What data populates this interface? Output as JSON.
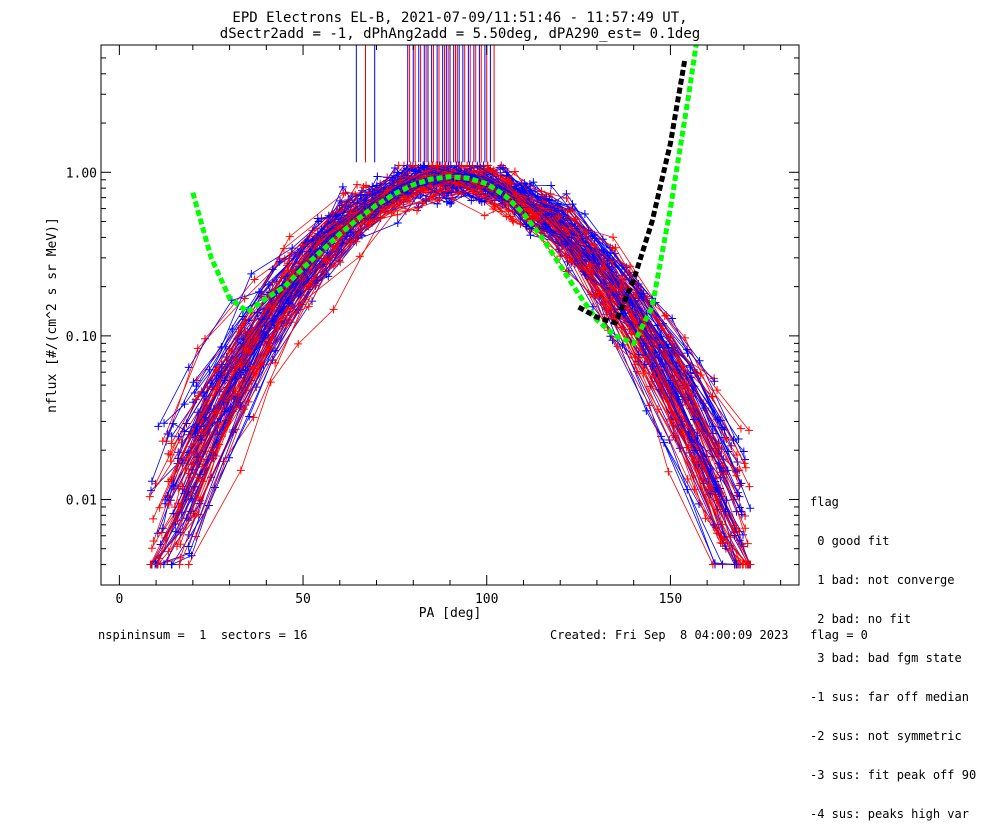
{
  "title": {
    "line1": "EPD Electrons EL-B, 2021-07-09/11:51:46 - 11:57:49 UT,",
    "line2": "dSectr2add = -1, dPhAng2add = 5.50deg, dPA290_est=   0.1deg"
  },
  "chart_data": {
    "type": "line",
    "xlabel": "PA [deg]",
    "ylabel": "nflux [#/(cm^2 s sr MeV)]",
    "xlim": [
      -5,
      185
    ],
    "ylim": [
      0.003,
      6.0
    ],
    "yscale": "log",
    "x_ticks": [
      0,
      50,
      100,
      150
    ],
    "x_tick_labels": [
      "0",
      "50",
      "100",
      "150"
    ],
    "y_ticks": [
      0.01,
      0.1,
      1.0
    ],
    "y_tick_labels": [
      "0.01",
      "0.10",
      "1.00"
    ],
    "colors": {
      "blue": "#0000ff",
      "red": "#ff0000",
      "green": "#00ff00",
      "black": "#000000"
    },
    "series": [
      {
        "color": "green",
        "style": "dashed-thick",
        "x": [
          20,
          25,
          30,
          35,
          40,
          45,
          50,
          55,
          60,
          65,
          70,
          75,
          80,
          85,
          90,
          95,
          100,
          105,
          110,
          115,
          120,
          125,
          130,
          135,
          140,
          145,
          150,
          155,
          157
        ],
        "y": [
          0.75,
          0.3,
          0.17,
          0.14,
          0.17,
          0.2,
          0.26,
          0.33,
          0.42,
          0.52,
          0.63,
          0.74,
          0.84,
          0.91,
          0.94,
          0.92,
          0.85,
          0.72,
          0.56,
          0.4,
          0.27,
          0.18,
          0.125,
          0.1,
          0.09,
          0.15,
          0.6,
          3.0,
          6.0
        ]
      },
      {
        "color": "black",
        "style": "dashed-thick",
        "x": [
          125,
          130,
          135,
          140,
          145,
          150,
          154
        ],
        "y": [
          0.15,
          0.13,
          0.12,
          0.22,
          0.5,
          1.5,
          5.0
        ]
      }
    ],
    "vertical_markers": {
      "blue_x": [
        64.5,
        69.5,
        78.5,
        80,
        81.5,
        83,
        84,
        85,
        86.5,
        88,
        89,
        90,
        91,
        92.5,
        93.5,
        95,
        96.5,
        98,
        99.5,
        101
      ],
      "red_x": [
        67,
        79,
        80.5,
        82,
        83.5,
        85.5,
        87,
        88.5,
        89.5,
        91.5,
        92,
        94,
        95.5,
        97,
        98.5,
        100,
        102
      ],
      "y_range": [
        1.15,
        6.0
      ]
    },
    "scatter_lines": "approximate spectra traced from the figure"
  },
  "legend": {
    "header": "flag",
    "items": [
      " 0 good fit",
      " 1 bad: not converge",
      " 2 bad: no fit",
      " 3 bad: bad fgm state",
      "-1 sus: far off median",
      "-2 sus: not symmetric",
      "-3 sus: fit peak off 90",
      "-4 sus: peaks high var"
    ]
  },
  "footer": {
    "left": "nspininsum =  1  sectors = 16",
    "right": "Created: Fri Sep  8 04:00:09 2023   flag = 0"
  }
}
